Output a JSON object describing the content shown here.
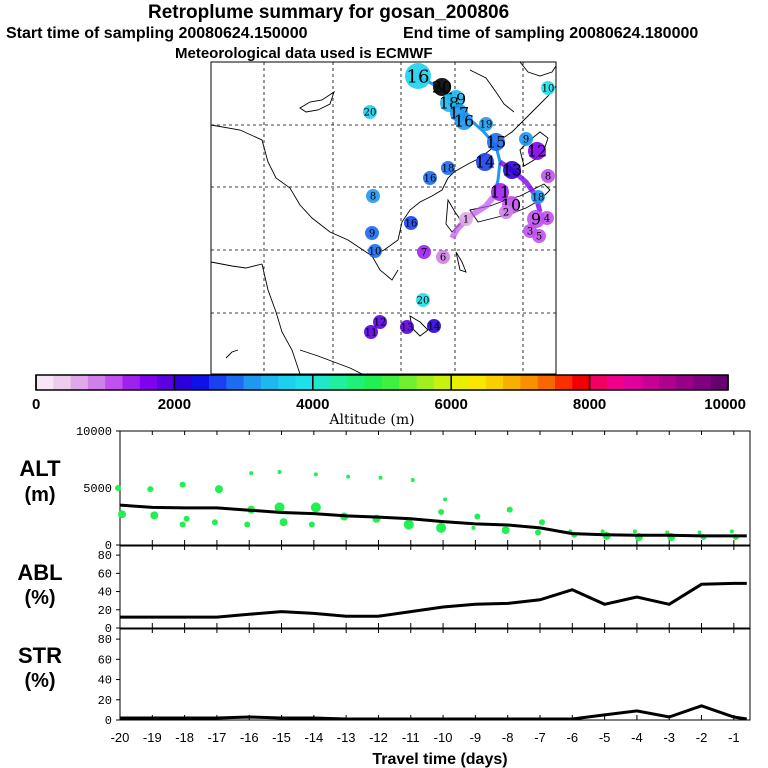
{
  "header": {
    "title": "Retroplume summary for gosan_200806",
    "start_label": "Start time of sampling 20080624.150000",
    "end_label": "End time of sampling 20080624.180000",
    "met_label": "Meteorological data used is ECMWF"
  },
  "colorbar": {
    "ticks": [
      "0",
      "2000",
      "4000",
      "6000",
      "8000",
      "10000"
    ],
    "label": "Altitude (m)",
    "colors": [
      "#f6e6f6",
      "#eeccee",
      "#e0a8e8",
      "#d080e8",
      "#c050f0",
      "#a020f0",
      "#8000f0",
      "#5a00e0",
      "#2b00d8",
      "#1010e8",
      "#1a40f0",
      "#1c6cf0",
      "#1e98f0",
      "#1eb8f0",
      "#1ed0f0",
      "#1ee0e8",
      "#1ee8c8",
      "#1ef0a0",
      "#1ef078",
      "#20f050",
      "#40f040",
      "#70f030",
      "#a0f020",
      "#c8f010",
      "#e8f000",
      "#f8e800",
      "#f8d000",
      "#f8b000",
      "#f89000",
      "#f86800",
      "#f83000",
      "#f00000",
      "#f00060",
      "#f0008a",
      "#e000a0",
      "#c80098",
      "#b00090",
      "#980088",
      "#800080",
      "#680070"
    ]
  },
  "map": {
    "labels": [
      {
        "t": "16",
        "s": "big",
        "c": "#1ed0f0"
      },
      {
        "t": "20",
        "s": "med",
        "c": "#000"
      },
      {
        "t": "19",
        "s": "med",
        "c": "#1eb8f0"
      },
      {
        "t": "18",
        "s": "med",
        "c": "#1eb8f0"
      },
      {
        "t": "17",
        "s": "med",
        "c": "#1e98f0"
      },
      {
        "t": "16",
        "s": "med",
        "c": "#1e98f0"
      },
      {
        "t": "15",
        "s": "med",
        "c": "#1c6cf0"
      },
      {
        "t": "14",
        "s": "med",
        "c": "#1a40f0"
      },
      {
        "t": "13",
        "s": "med",
        "c": "#2b00d8"
      },
      {
        "t": "12",
        "s": "med",
        "c": "#8000f0"
      },
      {
        "t": "11",
        "s": "med",
        "c": "#a020f0"
      },
      {
        "t": "10",
        "s": "med",
        "c": "#c050f0"
      },
      {
        "t": "9",
        "s": "med",
        "c": "#c050f0"
      },
      {
        "t": "8",
        "s": "small",
        "c": "#1e98f0"
      },
      {
        "t": "9",
        "s": "small",
        "c": "#1c6cf0"
      },
      {
        "t": "10",
        "s": "small",
        "c": "#1c6cf0"
      },
      {
        "t": "16",
        "s": "small",
        "c": "#1a40f0"
      },
      {
        "t": "20",
        "s": "small",
        "c": "#1ed0f0"
      },
      {
        "t": "20",
        "s": "small",
        "c": "#1ee0e8"
      },
      {
        "t": "12",
        "s": "small",
        "c": "#5a00e0"
      },
      {
        "t": "13",
        "s": "small",
        "c": "#5a00e0"
      },
      {
        "t": "11",
        "s": "small",
        "c": "#5a00e0"
      },
      {
        "t": "14",
        "s": "small",
        "c": "#2b00d8"
      },
      {
        "t": "18",
        "s": "small",
        "c": "#1c6cf0"
      },
      {
        "t": "16",
        "s": "small",
        "c": "#1c6cf0"
      },
      {
        "t": "10",
        "s": "small",
        "c": "#1ee0e8"
      },
      {
        "t": "19",
        "s": "small",
        "c": "#1e98f0"
      },
      {
        "t": "18",
        "s": "small",
        "c": "#1e98f0"
      },
      {
        "t": "9",
        "s": "small",
        "c": "#1e98f0"
      },
      {
        "t": "4",
        "s": "small",
        "c": "#c050f0"
      },
      {
        "t": "5",
        "s": "small",
        "c": "#c050f0"
      },
      {
        "t": "6",
        "s": "small",
        "c": "#d080e8"
      },
      {
        "t": "7",
        "s": "small",
        "c": "#a020f0"
      },
      {
        "t": "8",
        "s": "small",
        "c": "#c050f0"
      },
      {
        "t": "1",
        "s": "small",
        "c": "#e0a8e8"
      },
      {
        "t": "2",
        "s": "small",
        "c": "#d080e8"
      },
      {
        "t": "3",
        "s": "small",
        "c": "#c050f0"
      }
    ]
  },
  "chart_data": [
    {
      "type": "scatter",
      "name": "ALT",
      "ylabel_lines": [
        "ALT",
        "(m)"
      ],
      "xlabel": "Travel time (days)",
      "ylim": [
        0,
        10000
      ],
      "y_ticks": [
        "0",
        "5000",
        "10000"
      ],
      "x_ticks": [
        "-20",
        "-19",
        "-18",
        "-17",
        "-16",
        "-15",
        "-14",
        "-13",
        "-12",
        "-11",
        "-10",
        "-9",
        "-8",
        "-7",
        "-6",
        "-5",
        "-4",
        "-3",
        "-2",
        "-1"
      ],
      "xlim": [
        -20,
        -0.5
      ],
      "line": {
        "name": "mean altitude",
        "x": [
          -20,
          -19,
          -18,
          -17,
          -16,
          -15,
          -14,
          -13,
          -12,
          -11,
          -10,
          -9,
          -8,
          -7,
          -6,
          -5,
          -4,
          -3,
          -2,
          -1,
          -0.6
        ],
        "y": [
          3500,
          3300,
          3250,
          3250,
          3050,
          2850,
          2750,
          2550,
          2450,
          2300,
          2050,
          1850,
          1750,
          1500,
          1000,
          900,
          850,
          850,
          800,
          800,
          800
        ]
      },
      "points": {
        "x": [
          -20,
          -20,
          -19,
          -19,
          -18,
          -18,
          -18,
          -17,
          -17,
          -16,
          -16,
          -16,
          -15,
          -15,
          -15,
          -14,
          -14,
          -14,
          -13,
          -13,
          -12,
          -12,
          -11,
          -11,
          -10,
          -10,
          -10,
          -9,
          -9,
          -8,
          -8,
          -7,
          -7,
          -6,
          -6,
          -5,
          -5,
          -4,
          -4,
          -3,
          -3,
          -2,
          -2,
          -1,
          -1
        ],
        "y": [
          5000,
          2700,
          4900,
          2600,
          5300,
          2300,
          1800,
          4900,
          2000,
          3100,
          1800,
          6300,
          3300,
          2000,
          6400,
          3300,
          1800,
          6200,
          2500,
          6000,
          2300,
          5900,
          1800,
          5700,
          1500,
          4000,
          2900,
          2500,
          1500,
          3100,
          1300,
          2000,
          1100,
          900,
          1200,
          800,
          1200,
          700,
          1200,
          700,
          1100,
          700,
          1100,
          700,
          1200
        ],
        "size": [
          3,
          4,
          3,
          4,
          3,
          3,
          3,
          4,
          3,
          4,
          3,
          2,
          5,
          4,
          2,
          5,
          3,
          2,
          4,
          2,
          4,
          2,
          5,
          2,
          5,
          2,
          3,
          3,
          2,
          3,
          4,
          3,
          3,
          3,
          2,
          4,
          2,
          4,
          2,
          4,
          2,
          3,
          2,
          3,
          2
        ]
      }
    },
    {
      "type": "line",
      "name": "ABL",
      "ylabel_lines": [
        "ABL",
        "(%)"
      ],
      "ylim": [
        0,
        90
      ],
      "y_ticks": [
        "0",
        "20",
        "40",
        "60",
        "80"
      ],
      "x": [
        -20,
        -19,
        -18,
        -17,
        -16,
        -15,
        -14,
        -13,
        -12,
        -11,
        -10,
        -9,
        -8,
        -7,
        -6,
        -5,
        -4,
        -3,
        -2,
        -1,
        -0.6
      ],
      "y": [
        12,
        12,
        12,
        12,
        15,
        18,
        16,
        13,
        13,
        18,
        23,
        26,
        27,
        31,
        42,
        26,
        34,
        26,
        48,
        49,
        49
      ]
    },
    {
      "type": "line",
      "name": "STR",
      "ylabel_lines": [
        "STR",
        "(%)"
      ],
      "ylim": [
        0,
        90
      ],
      "y_ticks": [
        "0",
        "20",
        "40",
        "60",
        "80"
      ],
      "x": [
        -20,
        -19,
        -18,
        -17,
        -16,
        -15,
        -14,
        -13,
        -12,
        -11,
        -10,
        -9,
        -8,
        -7,
        -6,
        -5,
        -4,
        -3,
        -2,
        -1,
        -0.6
      ],
      "y": [
        2,
        2,
        2,
        2,
        3,
        2,
        2,
        1,
        1,
        1,
        1,
        1,
        1,
        1,
        1,
        5,
        9,
        3,
        14,
        3,
        1
      ]
    }
  ]
}
